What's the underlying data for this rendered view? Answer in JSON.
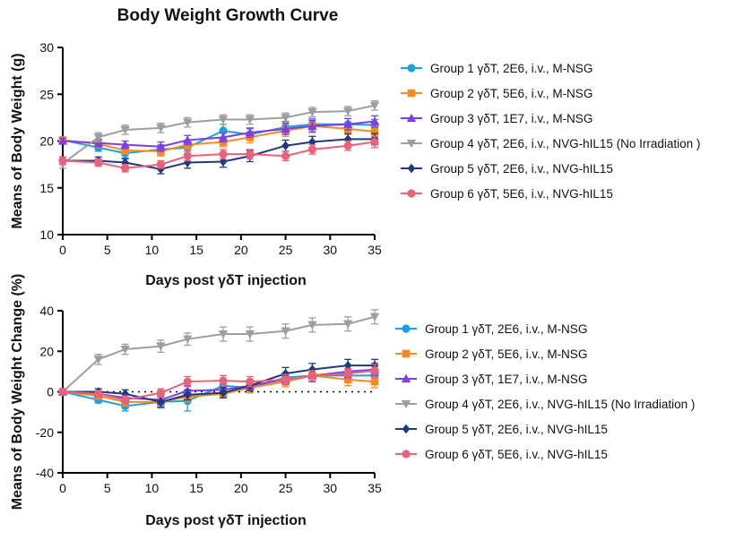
{
  "chart_data": [
    {
      "type": "line",
      "title": "Body Weight Growth Curve",
      "xlabel": "Days post γδT injection",
      "ylabel": "Means of Body Weight (g)",
      "xlim": [
        0,
        35
      ],
      "ylim": [
        10,
        30
      ],
      "xticks": [
        "0",
        "5",
        "10",
        "15",
        "20",
        "25",
        "30",
        "35"
      ],
      "yticks": [
        "10",
        "15",
        "20",
        "25",
        "30"
      ],
      "legend_position": "right",
      "series": [
        {
          "name": "Group 1 γδT, 2E6, i.v., M-NSG",
          "color": "#1ba1e2",
          "marker": "circle",
          "x": [
            0,
            4,
            7,
            11,
            14,
            18,
            21,
            25,
            28,
            32,
            35
          ],
          "y": [
            20.1,
            19.3,
            18.7,
            19.1,
            19.3,
            21.1,
            20.7,
            21.5,
            21.8,
            21.8,
            21.7
          ],
          "err": [
            0.3,
            0.4,
            0.5,
            0.5,
            0.6,
            0.7,
            0.6,
            0.6,
            0.6,
            0.6,
            0.6
          ]
        },
        {
          "name": "Group 2 γδT, 5E6, i.v., M-NSG",
          "color": "#f58a1f",
          "marker": "square",
          "x": [
            0,
            4,
            7,
            11,
            14,
            18,
            21,
            25,
            28,
            32,
            35
          ],
          "y": [
            20.1,
            19.7,
            19.0,
            18.9,
            19.6,
            19.9,
            20.4,
            21.1,
            21.6,
            21.3,
            21.0
          ],
          "err": [
            0.3,
            0.4,
            0.4,
            0.5,
            0.5,
            0.5,
            0.6,
            0.6,
            0.7,
            0.6,
            0.6
          ]
        },
        {
          "name": "Group 3 γδT, 1E7, i.v., M-NSG",
          "color": "#7b3fe4",
          "marker": "triangle",
          "x": [
            0,
            4,
            7,
            11,
            14,
            18,
            21,
            25,
            28,
            32,
            35
          ],
          "y": [
            20.0,
            19.8,
            19.6,
            19.4,
            20.1,
            20.4,
            20.9,
            21.3,
            21.6,
            21.8,
            22.1
          ],
          "err": [
            0.3,
            0.4,
            0.4,
            0.5,
            0.5,
            0.5,
            0.5,
            0.6,
            0.6,
            0.6,
            0.6
          ]
        },
        {
          "name": "Group 4 γδT, 2E6, i.v., NVG-hIL15 (No Irradiation )",
          "color": "#9e9e9e",
          "marker": "triangle-down",
          "x": [
            0,
            4,
            7,
            11,
            14,
            18,
            21,
            25,
            28,
            32,
            35
          ],
          "y": [
            17.6,
            20.4,
            21.2,
            21.4,
            22.0,
            22.3,
            22.3,
            22.5,
            23.1,
            23.2,
            23.8
          ],
          "err": [
            0.5,
            0.5,
            0.5,
            0.5,
            0.5,
            0.5,
            0.5,
            0.5,
            0.5,
            0.5,
            0.5
          ]
        },
        {
          "name": "Group 5 γδT, 2E6, i.v., NVG-hIL15",
          "color": "#1f3b7a",
          "marker": "diamond",
          "x": [
            0,
            4,
            7,
            11,
            14,
            18,
            21,
            25,
            28,
            32,
            35
          ],
          "y": [
            17.9,
            17.9,
            17.7,
            17.0,
            17.7,
            17.8,
            18.4,
            19.5,
            19.9,
            20.2,
            20.2
          ],
          "err": [
            0.4,
            0.4,
            0.4,
            0.5,
            0.6,
            0.6,
            0.6,
            0.6,
            0.6,
            0.6,
            0.6
          ]
        },
        {
          "name": "Group 6 γδT, 5E6, i.v., NVG-hIL15",
          "color": "#e8627a",
          "marker": "circle",
          "x": [
            0,
            4,
            7,
            11,
            14,
            18,
            21,
            25,
            28,
            32,
            35
          ],
          "y": [
            17.9,
            17.7,
            17.1,
            17.5,
            18.4,
            18.6,
            18.6,
            18.4,
            19.1,
            19.5,
            19.9
          ],
          "err": [
            0.4,
            0.4,
            0.4,
            0.4,
            0.5,
            0.5,
            0.5,
            0.5,
            0.5,
            0.5,
            0.6
          ]
        }
      ]
    },
    {
      "type": "line",
      "title": "",
      "xlabel": "Days post γδT injection",
      "ylabel": "Means of Body Weight Change (%)",
      "xlim": [
        0,
        35
      ],
      "ylim": [
        -40,
        40
      ],
      "xticks": [
        "0",
        "5",
        "10",
        "15",
        "20",
        "25",
        "30",
        "35"
      ],
      "yticks": [
        "-40",
        "-20",
        "0",
        "20",
        "40"
      ],
      "reference_line": 0,
      "legend_position": "right",
      "series": [
        {
          "name": "Group 1 γδT, 2E6, i.v., M-NSG",
          "color": "#1ba1e2",
          "marker": "circle",
          "x": [
            0,
            4,
            7,
            11,
            14,
            18,
            21,
            25,
            28,
            32,
            35
          ],
          "y": [
            0,
            -4,
            -7,
            -5,
            -4.5,
            3,
            2,
            7,
            8,
            8,
            8
          ],
          "err": [
            0,
            1.5,
            2.5,
            3,
            5,
            3,
            2.5,
            2.5,
            3,
            3,
            3
          ]
        },
        {
          "name": "Group 2 γδT, 5E6, i.v., M-NSG",
          "color": "#f58a1f",
          "marker": "square",
          "x": [
            0,
            4,
            7,
            11,
            14,
            18,
            21,
            25,
            28,
            32,
            35
          ],
          "y": [
            0,
            -2,
            -5,
            -5,
            -2.5,
            -1,
            2,
            5,
            8,
            6,
            5
          ],
          "err": [
            0,
            1.5,
            2,
            2.5,
            2.5,
            2,
            2.5,
            2.5,
            3,
            3,
            3
          ]
        },
        {
          "name": "Group 3 γδT, 1E7, i.v., M-NSG",
          "color": "#7b3fe4",
          "marker": "triangle",
          "x": [
            0,
            4,
            7,
            11,
            14,
            18,
            21,
            25,
            28,
            32,
            35
          ],
          "y": [
            0,
            -1,
            -3,
            -4,
            0.5,
            1,
            3,
            6,
            8,
            10,
            11
          ],
          "err": [
            0,
            1.5,
            2,
            2.5,
            2.5,
            2,
            2.5,
            2.5,
            3,
            3,
            3
          ]
        },
        {
          "name": "Group 4 γδT, 2E6, i.v., NVG-hIL15 (No Irradiation )",
          "color": "#9e9e9e",
          "marker": "triangle-down",
          "x": [
            0,
            4,
            7,
            11,
            14,
            18,
            21,
            25,
            28,
            32,
            35
          ],
          "y": [
            0,
            16,
            21,
            22.5,
            26,
            28.5,
            28.5,
            30,
            33,
            33.5,
            37
          ],
          "err": [
            0,
            2.5,
            2.5,
            3,
            3,
            3.5,
            3.5,
            3.5,
            3.5,
            3.5,
            3.5
          ]
        },
        {
          "name": "Group 5 γδT, 2E6, i.v., NVG-hIL15",
          "color": "#1f3b7a",
          "marker": "diamond",
          "x": [
            0,
            4,
            7,
            11,
            14,
            18,
            21,
            25,
            28,
            32,
            35
          ],
          "y": [
            0,
            0,
            -1,
            -5,
            -1.5,
            -0.5,
            3,
            9,
            11,
            13,
            13
          ],
          "err": [
            0,
            1.5,
            2,
            2.5,
            2.5,
            2.5,
            2.5,
            3,
            3,
            3,
            3
          ]
        },
        {
          "name": "Group 6 γδT, 5E6, i.v., NVG-hIL15",
          "color": "#e8627a",
          "marker": "circle",
          "x": [
            0,
            4,
            7,
            11,
            14,
            18,
            21,
            25,
            28,
            32,
            35
          ],
          "y": [
            0,
            -1,
            -4,
            -0.5,
            5,
            5.5,
            5,
            6,
            8,
            9,
            10.5
          ],
          "err": [
            0,
            1.5,
            2,
            2,
            2.5,
            2.5,
            2.5,
            2.5,
            2.5,
            2.5,
            3
          ]
        }
      ]
    }
  ]
}
